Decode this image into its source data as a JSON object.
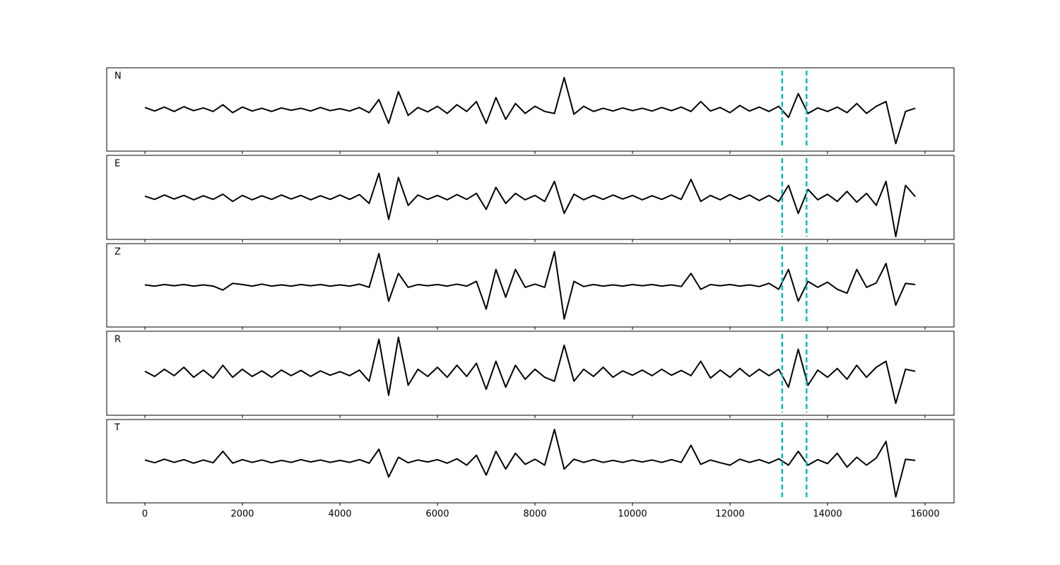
{
  "chart_data": {
    "type": "line",
    "x": [
      0,
      200,
      400,
      600,
      800,
      1000,
      1200,
      1400,
      1600,
      1800,
      2000,
      2200,
      2400,
      2600,
      2800,
      3000,
      3200,
      3400,
      3600,
      3800,
      4000,
      4200,
      4400,
      4600,
      4800,
      5000,
      5200,
      5400,
      5600,
      5800,
      6000,
      6200,
      6400,
      6600,
      6800,
      7000,
      7200,
      7400,
      7600,
      7800,
      8000,
      8200,
      8400,
      8600,
      8800,
      9000,
      9200,
      9400,
      9600,
      9800,
      10000,
      10200,
      10400,
      10600,
      10800,
      11000,
      11200,
      11400,
      11600,
      11800,
      12000,
      12200,
      12400,
      12600,
      12800,
      13000,
      13200,
      13400,
      13600,
      13800,
      14000,
      14200,
      14400,
      14600,
      14800,
      15000,
      15200,
      15400,
      15600,
      15800
    ],
    "series": [
      {
        "name": "N",
        "color": "#000000",
        "values": [
          0.05,
          -0.04,
          0.06,
          -0.05,
          0.07,
          -0.03,
          0.04,
          -0.05,
          0.12,
          -0.08,
          0.06,
          -0.04,
          0.03,
          -0.05,
          0.04,
          -0.02,
          0.03,
          -0.04,
          0.05,
          -0.03,
          0.02,
          -0.04,
          0.05,
          -0.08,
          0.25,
          -0.35,
          0.45,
          -0.15,
          0.05,
          -0.06,
          0.08,
          -0.1,
          0.12,
          -0.05,
          0.2,
          -0.35,
          0.3,
          -0.25,
          0.15,
          -0.1,
          0.08,
          -0.05,
          -0.1,
          0.8,
          -0.12,
          0.08,
          -0.05,
          0.03,
          -0.04,
          0.04,
          -0.03,
          0.03,
          -0.04,
          0.05,
          -0.03,
          0.06,
          -0.05,
          0.2,
          -0.04,
          0.05,
          -0.08,
          0.1,
          -0.04,
          0.06,
          -0.05,
          0.08,
          -0.2,
          0.4,
          -0.1,
          0.04,
          -0.05,
          0.06,
          -0.08,
          0.15,
          -0.1,
          0.08,
          0.2,
          -0.86,
          -0.05,
          0.03
        ]
      },
      {
        "name": "E",
        "color": "#000000",
        "values": [
          0.03,
          -0.05,
          0.06,
          -0.04,
          0.05,
          -0.06,
          0.04,
          -0.05,
          0.08,
          -0.1,
          0.05,
          -0.06,
          0.04,
          -0.05,
          0.06,
          -0.04,
          0.05,
          -0.06,
          0.04,
          -0.05,
          0.06,
          -0.05,
          0.07,
          -0.15,
          0.6,
          -0.55,
          0.5,
          -0.2,
          0.06,
          -0.05,
          0.05,
          -0.06,
          0.07,
          -0.05,
          0.1,
          -0.3,
          0.25,
          -0.15,
          0.1,
          -0.06,
          0.05,
          -0.1,
          0.4,
          -0.4,
          0.08,
          -0.06,
          0.05,
          -0.05,
          0.06,
          -0.04,
          0.05,
          -0.06,
          0.04,
          -0.05,
          0.06,
          -0.05,
          0.45,
          -0.1,
          0.05,
          -0.06,
          0.07,
          -0.05,
          0.06,
          -0.08,
          0.05,
          -0.1,
          0.3,
          -0.4,
          0.2,
          -0.06,
          0.08,
          -0.1,
          0.15,
          -0.12,
          0.1,
          -0.2,
          0.4,
          -0.98,
          0.3,
          0.02
        ]
      },
      {
        "name": "Z",
        "color": "#000000",
        "values": [
          0.01,
          -0.02,
          0.02,
          -0.01,
          0.02,
          -0.02,
          0.01,
          -0.02,
          -0.12,
          0.05,
          0.02,
          -0.02,
          0.03,
          -0.02,
          0.01,
          -0.02,
          0.02,
          -0.01,
          0.02,
          -0.02,
          0.01,
          -0.02,
          0.03,
          -0.05,
          0.8,
          -0.4,
          0.3,
          -0.05,
          0.02,
          -0.01,
          0.02,
          -0.02,
          0.03,
          -0.02,
          0.1,
          -0.6,
          0.4,
          -0.3,
          0.4,
          -0.05,
          0.03,
          -0.05,
          0.85,
          -0.85,
          0.1,
          -0.03,
          0.02,
          -0.02,
          0.01,
          -0.02,
          0.02,
          -0.01,
          0.02,
          -0.02,
          0.01,
          -0.03,
          0.3,
          -0.1,
          0.02,
          -0.01,
          0.02,
          -0.02,
          0.01,
          -0.03,
          0.05,
          -0.1,
          0.4,
          -0.4,
          0.1,
          -0.05,
          0.08,
          -0.1,
          -0.2,
          0.4,
          -0.05,
          0.06,
          0.55,
          -0.5,
          0.05,
          0.02
        ]
      },
      {
        "name": "R",
        "color": "#000000",
        "values": [
          0.05,
          -0.08,
          0.1,
          -0.06,
          0.15,
          -0.1,
          0.08,
          -0.12,
          0.2,
          -0.1,
          0.1,
          -0.08,
          0.06,
          -0.1,
          0.08,
          -0.06,
          0.07,
          -0.08,
          0.06,
          -0.05,
          0.04,
          -0.06,
          0.08,
          -0.2,
          0.85,
          -0.55,
          0.9,
          -0.3,
          0.1,
          -0.08,
          0.15,
          -0.1,
          0.2,
          -0.08,
          0.25,
          -0.4,
          0.3,
          -0.35,
          0.2,
          -0.15,
          0.1,
          -0.1,
          -0.2,
          0.7,
          -0.2,
          0.1,
          -0.08,
          0.15,
          -0.1,
          0.06,
          -0.05,
          0.08,
          -0.06,
          0.1,
          -0.05,
          0.07,
          -0.06,
          0.3,
          -0.12,
          0.08,
          -0.1,
          0.12,
          -0.08,
          0.1,
          -0.06,
          0.1,
          -0.35,
          0.6,
          -0.3,
          0.08,
          -0.1,
          0.12,
          -0.15,
          0.2,
          -0.1,
          0.15,
          0.3,
          -0.75,
          0.1,
          0.05
        ]
      },
      {
        "name": "T",
        "color": "#000000",
        "values": [
          0.03,
          -0.04,
          0.05,
          -0.03,
          0.04,
          -0.05,
          0.03,
          -0.04,
          0.25,
          -0.05,
          0.04,
          -0.03,
          0.03,
          -0.04,
          0.02,
          -0.03,
          0.04,
          -0.02,
          0.03,
          -0.03,
          0.02,
          -0.03,
          0.04,
          -0.05,
          0.3,
          -0.4,
          0.1,
          -0.04,
          0.03,
          -0.02,
          0.04,
          -0.05,
          0.06,
          -0.1,
          0.15,
          -0.35,
          0.25,
          -0.2,
          0.2,
          -0.08,
          0.05,
          -0.1,
          0.8,
          -0.2,
          0.05,
          -0.03,
          0.04,
          -0.03,
          0.02,
          -0.03,
          0.03,
          -0.02,
          0.03,
          -0.03,
          0.04,
          -0.03,
          0.4,
          -0.08,
          0.03,
          -0.04,
          -0.1,
          0.05,
          -0.03,
          0.04,
          -0.05,
          0.06,
          -0.1,
          0.25,
          -0.1,
          0.04,
          -0.06,
          0.2,
          -0.15,
          0.1,
          -0.1,
          0.08,
          0.5,
          -0.9,
          0.05,
          0.02
        ]
      }
    ],
    "xlim": [
      -783,
      16594
    ],
    "xticks": [
      0,
      2000,
      4000,
      6000,
      8000,
      10000,
      12000,
      14000,
      16000
    ],
    "ylim": [
      -1.05,
      1.05
    ],
    "vlines": [
      13070,
      13570
    ],
    "vline_color": "#00bfbf"
  }
}
